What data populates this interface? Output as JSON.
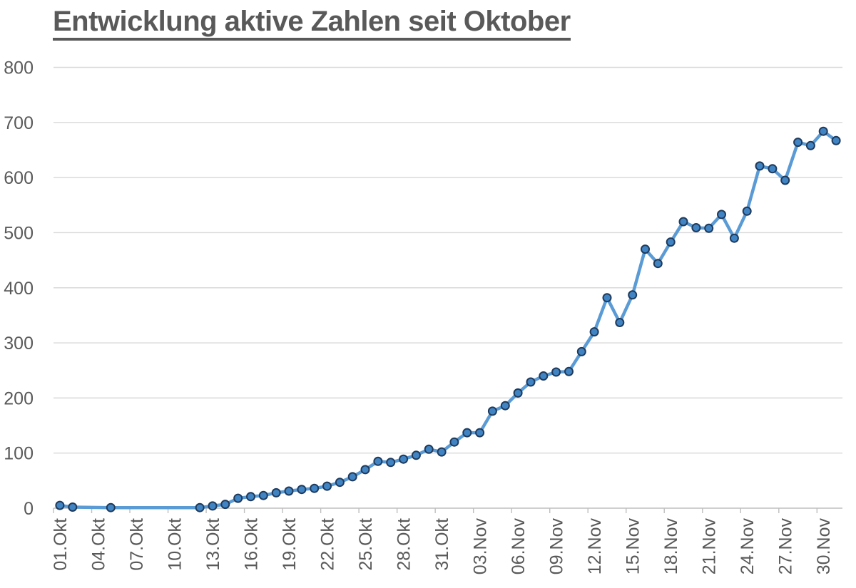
{
  "title": "Entwicklung aktive Zahlen seit Oktober",
  "colors": {
    "line": "#5B9BD5",
    "marker_fill": "#4184C4",
    "marker_stroke": "#1E3A5C",
    "grid": "#D9D9D9",
    "axis": "#BFBFBF",
    "label_text": "#595959",
    "title_text": "#595959"
  },
  "chart_data": {
    "type": "line",
    "title": "Entwicklung aktive Zahlen seit Oktober",
    "xlabel": "",
    "ylabel": "",
    "ylim": [
      0,
      800
    ],
    "ytick_step": 100,
    "ytick_labels": [
      "0",
      "100",
      "200",
      "300",
      "400",
      "500",
      "600",
      "700",
      "800"
    ],
    "xtick_label_interval": 3,
    "grid": "horizontal",
    "legend": "none",
    "categories": [
      "01.Okt",
      "02.Okt",
      "03.Okt",
      "04.Okt",
      "05.Okt",
      "06.Okt",
      "07.Okt",
      "08.Okt",
      "09.Okt",
      "10.Okt",
      "11.Okt",
      "12.Okt",
      "13.Okt",
      "14.Okt",
      "15.Okt",
      "16.Okt",
      "17.Okt",
      "18.Okt",
      "19.Okt",
      "20.Okt",
      "21.Okt",
      "22.Okt",
      "23.Okt",
      "24.Okt",
      "25.Okt",
      "26.Okt",
      "27.Okt",
      "28.Okt",
      "29.Okt",
      "30.Okt",
      "31.Okt",
      "01.Nov",
      "02.Nov",
      "03.Nov",
      "04.Nov",
      "05.Nov",
      "06.Nov",
      "07.Nov",
      "08.Nov",
      "09.Nov",
      "10.Nov",
      "11.Nov",
      "12.Nov",
      "13.Nov",
      "14.Nov",
      "15.Nov",
      "16.Nov",
      "17.Nov",
      "18.Nov",
      "19.Nov",
      "20.Nov",
      "21.Nov",
      "22.Nov",
      "23.Nov",
      "24.Nov",
      "25.Nov",
      "26.Nov",
      "27.Nov",
      "28.Nov",
      "29.Nov",
      "30.Nov",
      "01.Dez"
    ],
    "values": [
      5,
      2,
      null,
      null,
      1,
      null,
      null,
      null,
      null,
      null,
      null,
      1,
      4,
      7,
      18,
      21,
      23,
      28,
      31,
      34,
      36,
      40,
      47,
      57,
      70,
      85,
      83,
      89,
      96,
      107,
      102,
      120,
      137,
      137,
      176,
      186,
      209,
      229,
      240,
      247,
      248,
      284,
      320,
      382,
      337,
      387,
      470,
      444,
      483,
      520,
      509,
      508,
      533,
      490,
      539,
      621,
      616,
      595,
      664,
      658,
      684,
      667
    ]
  }
}
